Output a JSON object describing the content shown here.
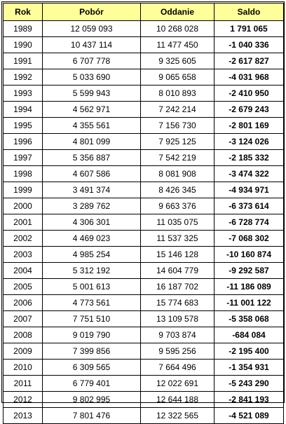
{
  "columns": [
    "Rok",
    "Pobór",
    "Oddanie",
    "Saldo"
  ],
  "rows": [
    [
      "1989",
      "12 059 093",
      "10 268 028",
      "1 791 065"
    ],
    [
      "1990",
      "10 437 114",
      "11 477 450",
      "-1 040 336"
    ],
    [
      "1991",
      "6 707 778",
      "9 325 605",
      "-2 617 827"
    ],
    [
      "1992",
      "5 033 690",
      "9 065 658",
      "-4 031 968"
    ],
    [
      "1993",
      "5 599 943",
      "8 010 893",
      "-2 410 950"
    ],
    [
      "1994",
      "4 562 971",
      "7 242 214",
      "-2 679 243"
    ],
    [
      "1995",
      "4 355 561",
      "7 156 730",
      "-2 801 169"
    ],
    [
      "1996",
      "4 801 099",
      "7 925 125",
      "-3 124 026"
    ],
    [
      "1997",
      "5 356 887",
      "7 542 219",
      "-2 185 332"
    ],
    [
      "1998",
      "4 607 586",
      "8 081 908",
      "-3 474 322"
    ],
    [
      "1999",
      "3 491 374",
      "8 426 345",
      "-4 934 971"
    ],
    [
      "2000",
      "3 289 762",
      "9 663 376",
      "-6 373 614"
    ],
    [
      "2001",
      "4 306 301",
      "11 035 075",
      "-6 728 774"
    ],
    [
      "2002",
      "4 469 023",
      "11 537 325",
      "-7 068 302"
    ],
    [
      "2003",
      "4 985 254",
      "15 146 128",
      "-10 160 874"
    ],
    [
      "2004",
      "5 312 192",
      "14 604 779",
      "-9 292 587"
    ],
    [
      "2005",
      "5 001 613",
      "16 187 702",
      "-11 186 089"
    ],
    [
      "2006",
      "4 773 561",
      "15 774 683",
      "-11 001 122"
    ],
    [
      "2007",
      "7 751 510",
      "13 109 578",
      "-5 358 068"
    ],
    [
      "2008",
      "9 019 790",
      "9 703 874",
      "-684 084"
    ],
    [
      "2009",
      "7 399 856",
      "9 595 256",
      "-2 195 400"
    ],
    [
      "2010",
      "6 309 565",
      "7 664 496",
      "-1 354 931"
    ],
    [
      "2011",
      "6 779 401",
      "12 022 691",
      "-5 243 290"
    ],
    [
      "2012",
      "9 802 995",
      "12 644 188",
      "-2 841 193"
    ],
    [
      "2013",
      "7 801 476",
      "12 322 565",
      "-4 521 089"
    ]
  ],
  "colors": {
    "header_bg": "#ffff99",
    "border": "#000000"
  }
}
